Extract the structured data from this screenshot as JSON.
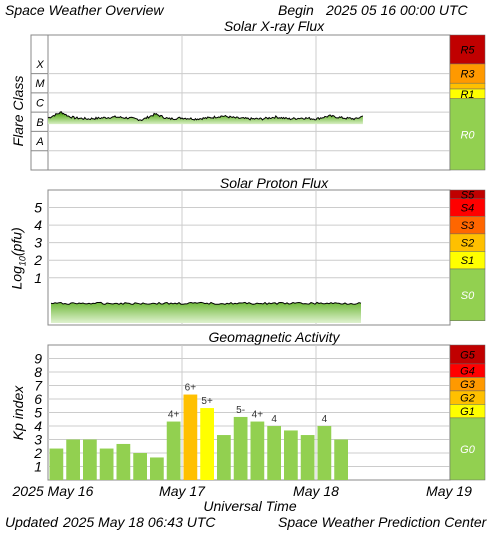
{
  "header": {
    "title": "Space Weather Overview",
    "begin_label": "Begin",
    "begin_date": "2025 05 16 00:00 UTC"
  },
  "footer": {
    "x_axis_title": "Universal Time",
    "updated_label": "Updated",
    "updated_time": "2025 May 18 06:43 UTC",
    "credit": "Space Weather Prediction Center"
  },
  "colors": {
    "green_fill": "#92d050",
    "green_dark": "#4f8f1f",
    "yellow": "#ffff00",
    "gold": "#ffc000",
    "orange": "#ff9900",
    "orange_red": "#ff6600",
    "red": "#ff0000",
    "dark_red": "#c00000",
    "grid": "#cccccc"
  },
  "chart_data": [
    {
      "type": "area",
      "title": "Solar X-ray Flux",
      "ylabel": "Flare Class",
      "x_ticks": [
        "2025 May 16",
        "May 17",
        "May 18",
        "May 19"
      ],
      "x_range_days": [
        0,
        3
      ],
      "y_class_labels": [
        "A",
        "B",
        "C",
        "M",
        "X"
      ],
      "y_range_log_wm2": [
        -9,
        -2
      ],
      "series": {
        "x_days": [
          0,
          0.1,
          0.15,
          0.2,
          0.3,
          0.4,
          0.5,
          0.6,
          0.7,
          0.8,
          0.9,
          1.0,
          1.1,
          1.2,
          1.3,
          1.4,
          1.5,
          1.6,
          1.7,
          1.8,
          1.9,
          2.0,
          2.1,
          2.2,
          2.3,
          2.35
        ],
        "log_flux": [
          -6.3,
          -6.0,
          -6.2,
          -6.3,
          -6.35,
          -6.3,
          -6.25,
          -6.3,
          -6.4,
          -6.1,
          -6.35,
          -6.3,
          -6.35,
          -6.3,
          -6.2,
          -6.3,
          -6.35,
          -6.35,
          -6.25,
          -6.35,
          -6.3,
          -6.35,
          -6.2,
          -6.3,
          -6.35,
          -6.2
        ]
      },
      "scale_labels": [
        "R5",
        "R3",
        "R1",
        "R0"
      ],
      "scale_colors": [
        "#c00000",
        "#ff9900",
        "#ffff00",
        "#92d050"
      ]
    },
    {
      "type": "area",
      "title": "Solar Proton Flux",
      "ylabel": "Log10(pfu)",
      "x_ticks": [
        "2025 May 16",
        "May 17",
        "May 18",
        "May 19"
      ],
      "y_range": [
        0,
        6
      ],
      "y_ticks": [
        "1",
        "2",
        "3",
        "4",
        "5"
      ],
      "series": {
        "x_days": [
          0,
          2.35
        ],
        "log10_pfu": [
          -1.0,
          -1.0
        ]
      },
      "scale_labels": [
        "S5",
        "S4",
        "S3",
        "S2",
        "S1",
        "S0"
      ],
      "scale_colors": [
        "#c00000",
        "#ff0000",
        "#ff6600",
        "#ffc000",
        "#ffff00",
        "#92d050"
      ]
    },
    {
      "type": "bar",
      "title": "Geomagnetic Activity",
      "ylabel": "Kp index",
      "x_ticks": [
        "2025 May 16",
        "May 17",
        "May 18",
        "May 19"
      ],
      "y_range": [
        0,
        10
      ],
      "y_ticks": [
        "1",
        "2",
        "3",
        "4",
        "5",
        "6",
        "7",
        "8",
        "9"
      ],
      "values": [
        2.33,
        3.0,
        3.0,
        2.33,
        2.67,
        2.0,
        1.67,
        4.33,
        6.33,
        5.33,
        3.33,
        4.67,
        4.33,
        4.0,
        3.67,
        3.33,
        4.0,
        3.0
      ],
      "bar_labels": [
        "",
        "",
        "",
        "",
        "",
        "",
        "",
        "4+",
        "6+",
        "5+",
        "",
        "5-",
        "4+",
        "4",
        "",
        "",
        "4",
        ""
      ],
      "scale_labels": [
        "G5",
        "G4",
        "G3",
        "G2",
        "G1",
        "G0"
      ],
      "scale_colors": [
        "#c00000",
        "#ff0000",
        "#ff9900",
        "#ffc000",
        "#ffff00",
        "#92d050"
      ]
    }
  ]
}
